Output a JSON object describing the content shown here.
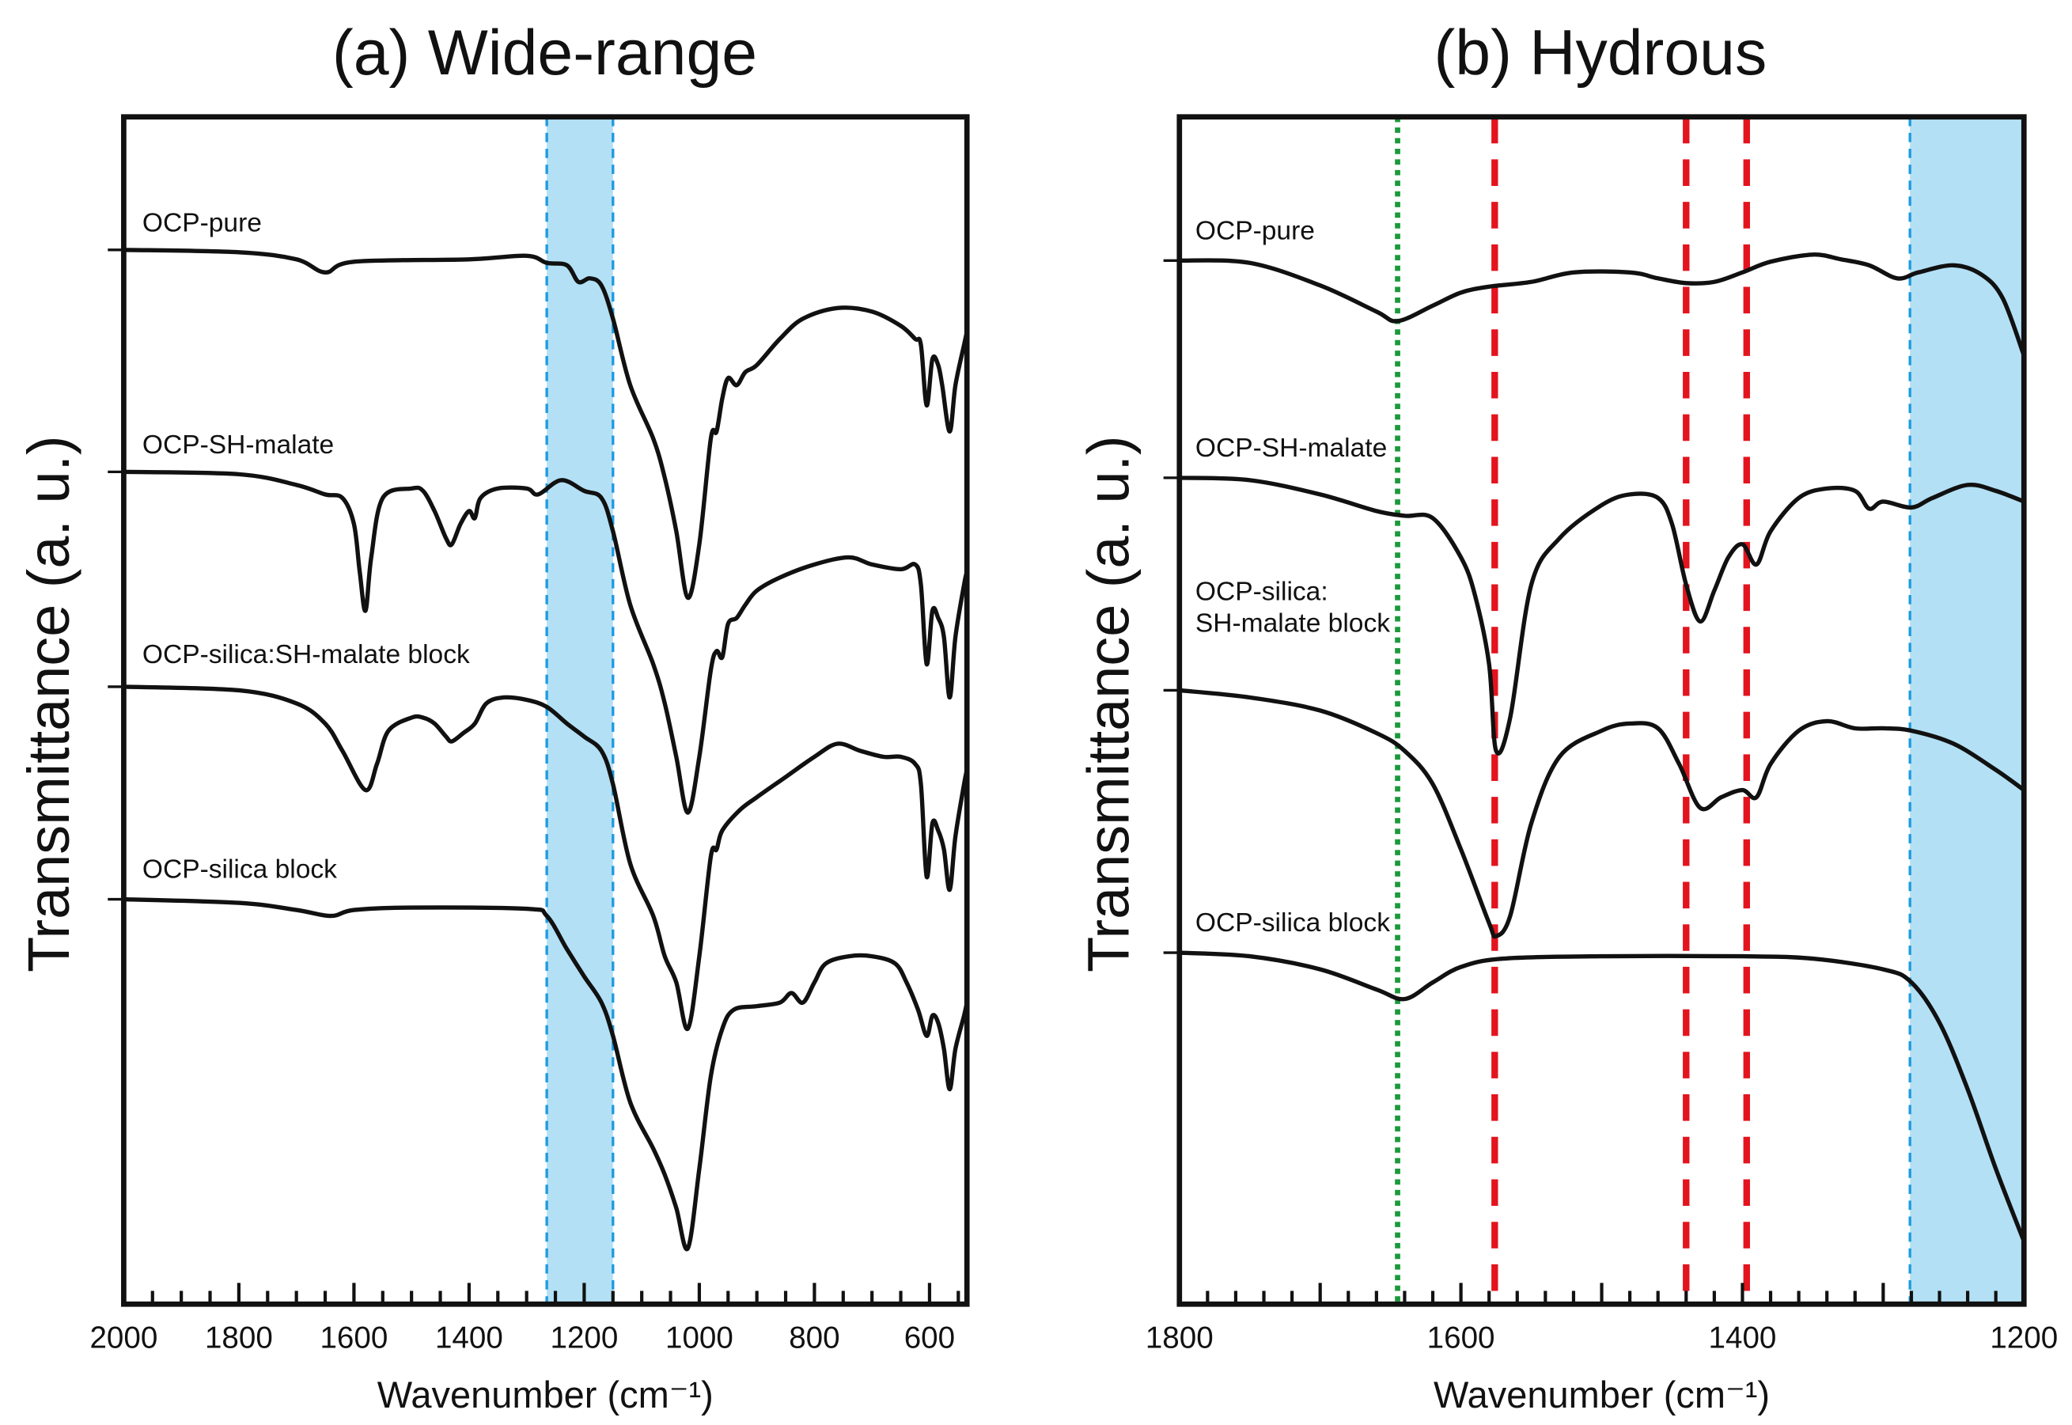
{
  "chart_data": [
    {
      "type": "line",
      "title": "(a) Wide-range",
      "xlabel": "Wavenumber (cm⁻¹)",
      "ylabel": "Transmittance (a. u.)",
      "xlim": [
        2000,
        535
      ],
      "ylim": [
        0,
        100
      ],
      "xticks": [
        2000,
        1800,
        1600,
        1400,
        1200,
        1000,
        800,
        600
      ],
      "grid": false,
      "highlight_band": {
        "from": 1265,
        "to": 1150,
        "color": "#b3e0f5",
        "edge_color": "#1e9be0"
      },
      "series": [
        {
          "name": "OCP-pure",
          "x": [
            2000,
            1800,
            1700,
            1650,
            1600,
            1400,
            1300,
            1265,
            1230,
            1210,
            1190,
            1170,
            1150,
            1120,
            1080,
            1060,
            1040,
            1020,
            1000,
            980,
            970,
            960,
            950,
            935,
            920,
            900,
            860,
            820,
            760,
            700,
            650,
            625,
            615,
            605,
            595,
            585,
            578,
            565,
            555,
            540,
            535
          ],
          "y": [
            88.8,
            88.6,
            88,
            86.9,
            87.8,
            88,
            88.3,
            87.7,
            87.5,
            86.1,
            86.4,
            85.8,
            83,
            77.4,
            72.9,
            69.6,
            65.1,
            59.5,
            64,
            72.9,
            73.5,
            76.3,
            78,
            77.4,
            78.5,
            79.1,
            81.3,
            83,
            83.9,
            83.6,
            82.4,
            81.3,
            80.8,
            75.7,
            79.6,
            79.1,
            77.4,
            73.5,
            77.4,
            80.8,
            81.9
          ]
        },
        {
          "name": "OCP-SH-malate",
          "x": [
            2000,
            1800,
            1700,
            1650,
            1620,
            1600,
            1590,
            1580,
            1570,
            1550,
            1500,
            1480,
            1460,
            1440,
            1430,
            1415,
            1400,
            1390,
            1380,
            1350,
            1300,
            1280,
            1240,
            1200,
            1170,
            1150,
            1120,
            1080,
            1060,
            1040,
            1020,
            1000,
            980,
            970,
            960,
            950,
            935,
            920,
            900,
            860,
            800,
            740,
            700,
            650,
            625,
            615,
            605,
            595,
            585,
            575,
            565,
            555,
            540,
            535
          ],
          "y": [
            70.1,
            69.9,
            69,
            68.2,
            67.9,
            65.7,
            61.7,
            58.4,
            62.9,
            67.9,
            68.7,
            68.5,
            66.8,
            64.5,
            64,
            65.7,
            66.8,
            66.2,
            67.9,
            68.7,
            68.7,
            68.2,
            69.4,
            68.5,
            67.9,
            65.1,
            58.9,
            53.9,
            50.6,
            46.1,
            41.4,
            46.1,
            53.4,
            55,
            54.5,
            57.3,
            57.8,
            58.9,
            60.1,
            61.2,
            62.3,
            62.9,
            62.3,
            61.9,
            62.3,
            60.6,
            53.9,
            58.4,
            57.8,
            56.2,
            51.1,
            56.2,
            60.6,
            61.7
          ]
        },
        {
          "name": "OCP-silica:SH-malate block",
          "x": [
            2000,
            1800,
            1700,
            1650,
            1620,
            1580,
            1560,
            1540,
            1500,
            1480,
            1460,
            1440,
            1430,
            1410,
            1390,
            1370,
            1340,
            1300,
            1265,
            1230,
            1200,
            1170,
            1150,
            1120,
            1080,
            1060,
            1040,
            1020,
            1000,
            980,
            970,
            960,
            930,
            900,
            850,
            800,
            760,
            720,
            680,
            650,
            625,
            615,
            605,
            595,
            585,
            575,
            565,
            555,
            540,
            535
          ],
          "y": [
            52,
            51.7,
            50.6,
            48.9,
            46.6,
            43.3,
            45.5,
            48.3,
            49.4,
            49.4,
            48.9,
            47.8,
            47.4,
            48.1,
            48.9,
            50.6,
            51.1,
            50.9,
            50.3,
            48.9,
            47.8,
            46.6,
            43.8,
            37.1,
            32.7,
            29.3,
            27.1,
            23.2,
            29.3,
            37.7,
            38.3,
            39.9,
            41.6,
            42.7,
            44.4,
            46.1,
            47.2,
            46.6,
            46.1,
            46.1,
            45.5,
            43.8,
            36,
            40.5,
            39.9,
            38.3,
            34.9,
            39.4,
            43.8,
            45
          ]
        },
        {
          "name": "OCP-silica block",
          "x": [
            2000,
            1800,
            1700,
            1640,
            1600,
            1500,
            1300,
            1265,
            1230,
            1200,
            1170,
            1150,
            1120,
            1080,
            1060,
            1040,
            1020,
            1000,
            980,
            960,
            940,
            900,
            860,
            840,
            820,
            800,
            780,
            740,
            700,
            660,
            640,
            620,
            605,
            595,
            585,
            575,
            565,
            555,
            540,
            535
          ],
          "y": [
            34.1,
            33.8,
            33.2,
            32.7,
            33.2,
            33.4,
            33.3,
            32.7,
            29.9,
            27.6,
            25.4,
            22.6,
            17,
            13.1,
            10.9,
            8.1,
            4.7,
            11.4,
            19.2,
            23.2,
            24.8,
            25.1,
            25.4,
            26.2,
            25.4,
            27.1,
            28.7,
            29.3,
            29.3,
            28.7,
            27.1,
            24.8,
            22.6,
            24.3,
            23.7,
            21.5,
            18.1,
            21.5,
            24.3,
            25.4
          ]
        }
      ]
    },
    {
      "type": "line",
      "title": "(b) Hydrous",
      "xlabel": "Wavenumber (cm⁻¹)",
      "ylabel": "Transmittance (a. u.)",
      "xlim": [
        1800,
        1200
      ],
      "ylim": [
        0,
        100
      ],
      "xticks": [
        1800,
        1600,
        1400,
        1200
      ],
      "grid": false,
      "highlight_band": {
        "from": 1281,
        "to": 1200,
        "color": "#b3e0f5",
        "edge_color": "#1e9be0"
      },
      "reference_lines": [
        {
          "x": 1645,
          "style": "dotted",
          "color": "#1a9a3c"
        },
        {
          "x": 1576,
          "style": "dashed",
          "color": "#e3141e"
        },
        {
          "x": 1440,
          "style": "dashed",
          "color": "#e3141e"
        },
        {
          "x": 1397,
          "style": "dashed",
          "color": "#e3141e"
        }
      ],
      "series": [
        {
          "name": "OCP-pure",
          "x": [
            1800,
            1750,
            1700,
            1660,
            1645,
            1620,
            1600,
            1580,
            1550,
            1520,
            1480,
            1460,
            1440,
            1420,
            1400,
            1380,
            1350,
            1330,
            1310,
            1290,
            1275,
            1250,
            1230,
            1215,
            1200
          ],
          "y": [
            87.9,
            87.7,
            85.8,
            83.6,
            82.8,
            84.1,
            85.2,
            85.7,
            86.1,
            86.9,
            86.9,
            86.4,
            86,
            86.1,
            86.9,
            87.8,
            88.4,
            88,
            87.5,
            86.4,
            86.9,
            87.5,
            86.7,
            84.7,
            79.9
          ]
        },
        {
          "name": "OCP-SH-malate",
          "x": [
            1800,
            1750,
            1700,
            1660,
            1640,
            1620,
            1600,
            1590,
            1580,
            1575,
            1565,
            1550,
            1530,
            1500,
            1480,
            1460,
            1450,
            1440,
            1430,
            1420,
            1410,
            1400,
            1390,
            1380,
            1360,
            1340,
            1320,
            1310,
            1300,
            1280,
            1265,
            1240,
            1220,
            1200
          ],
          "y": [
            69.6,
            69.4,
            68.2,
            66.8,
            66.4,
            66.2,
            62.9,
            59.7,
            53.9,
            46.6,
            49.4,
            60.6,
            64.5,
            67.3,
            68.2,
            67.9,
            65.7,
            60.6,
            57.5,
            60.1,
            62.9,
            64,
            62.3,
            65.1,
            67.9,
            68.7,
            68.5,
            67,
            67.6,
            67.1,
            67.9,
            69,
            68.5,
            67.6
          ]
        },
        {
          "name": "OCP-silica:\nSH-malate block",
          "x": [
            1800,
            1750,
            1700,
            1660,
            1640,
            1620,
            1600,
            1580,
            1575,
            1565,
            1550,
            1530,
            1500,
            1480,
            1460,
            1445,
            1430,
            1415,
            1400,
            1390,
            1380,
            1360,
            1340,
            1320,
            1300,
            1280,
            1250,
            1220,
            1200
          ],
          "y": [
            51.7,
            51.1,
            50,
            48.1,
            46.6,
            43.8,
            38.3,
            32.1,
            31,
            32.7,
            40.5,
            46.1,
            48.3,
            48.9,
            48.5,
            45.5,
            41.8,
            42.7,
            43.3,
            42.7,
            45.5,
            48.3,
            49.1,
            48.5,
            48.5,
            48.3,
            47.2,
            45,
            43.3
          ]
        },
        {
          "name": "OCP-silica block",
          "x": [
            1800,
            1750,
            1700,
            1660,
            1640,
            1620,
            1600,
            1570,
            1500,
            1400,
            1350,
            1300,
            1280,
            1260,
            1240,
            1220,
            1200
          ],
          "y": [
            29.6,
            29.3,
            28.2,
            26.5,
            25.7,
            27.1,
            28.4,
            29.1,
            29.3,
            29.3,
            29.1,
            28.2,
            27.1,
            23.7,
            18.1,
            11.4,
            5.3
          ]
        }
      ]
    }
  ]
}
